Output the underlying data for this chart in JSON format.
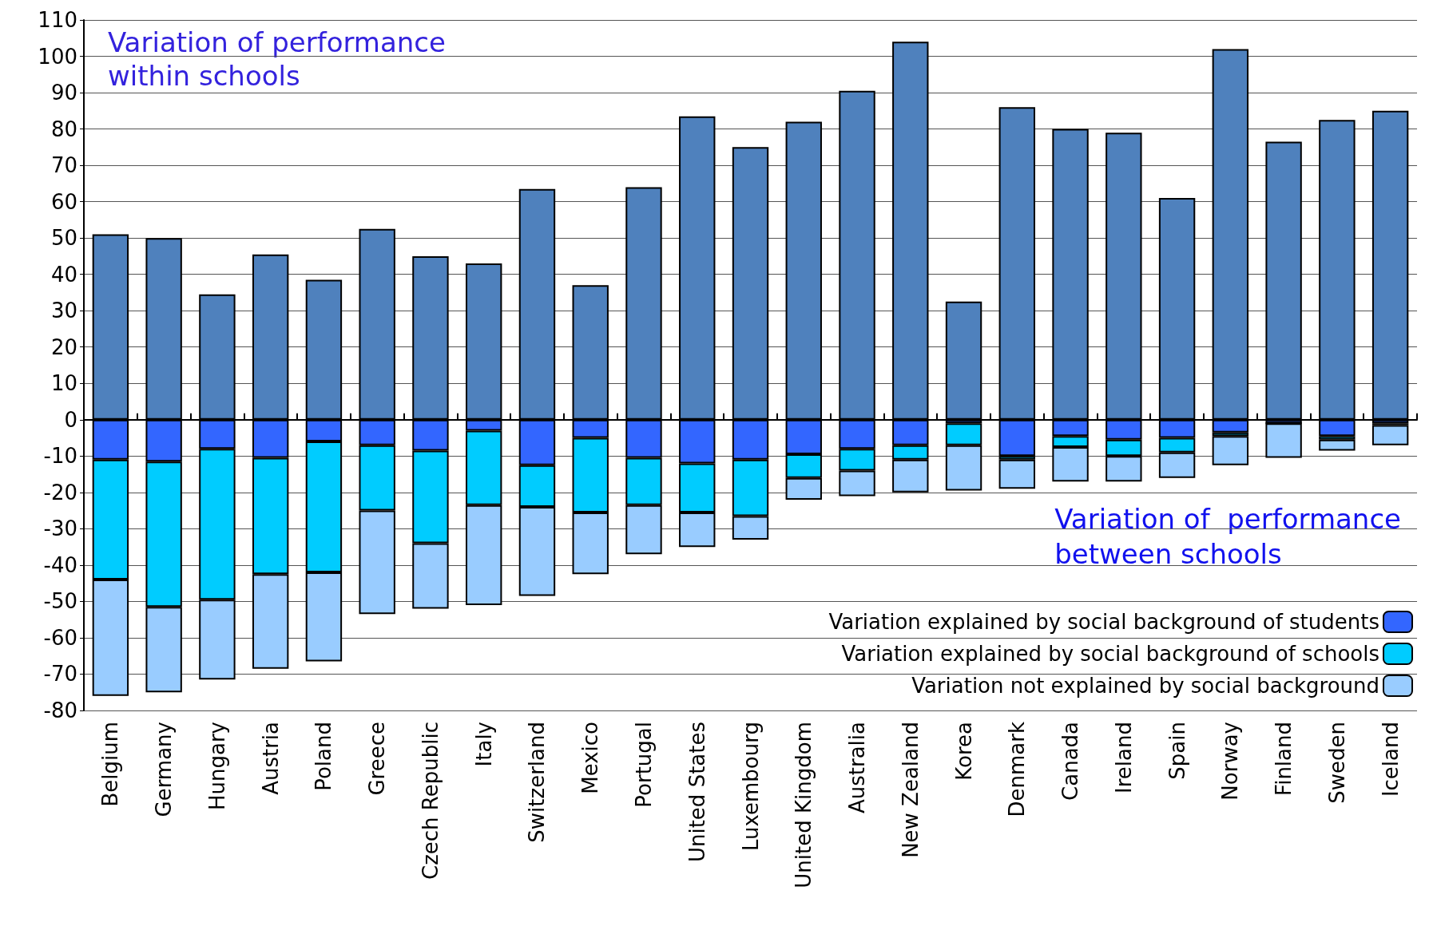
{
  "chart_data": {
    "type": "bar",
    "stacked": true,
    "categories": [
      "Belgium",
      "Germany",
      "Hungary",
      "Austria",
      "Poland",
      "Greece",
      "Czech Republic",
      "Italy",
      "Switzerland",
      "Mexico",
      "Portugal",
      "United States",
      "Luxembourg",
      "United Kingdom",
      "Australia",
      "New Zealand",
      "Korea",
      "Denmark",
      "Canada",
      "Ireland",
      "Spain",
      "Norway",
      "Finland",
      "Sweden",
      "Iceland"
    ],
    "series": [
      {
        "color": "#4f81bd",
        "values": [
          51,
          50,
          34.5,
          45.5,
          38.5,
          52.5,
          45,
          43,
          63.5,
          37,
          64,
          83.5,
          75,
          82,
          90.5,
          104,
          32.5,
          86,
          80,
          79,
          61,
          102,
          76.5,
          82.5,
          85
        ]
      },
      {
        "name": "Variation explained by social background of students",
        "color": "#3366ff",
        "values": [
          -11,
          -11.5,
          -8,
          -10.5,
          -6,
          -7,
          -8.5,
          -3,
          -12.5,
          -5,
          -10.5,
          -12,
          -11,
          -9.5,
          -8,
          -7,
          -1,
          -10,
          -4.5,
          -5.5,
          -5,
          -3.5,
          -1,
          -4.5,
          -1
        ]
      },
      {
        "name": "Variation explained by social background of schools",
        "color": "#00ccff",
        "values": [
          -33,
          -40,
          -41.5,
          -32,
          -36,
          -18,
          -25.5,
          -20.5,
          -11.5,
          -20.5,
          -13,
          -13.5,
          -15.5,
          -6.5,
          -6,
          -4,
          -6,
          -1,
          -3,
          -4.5,
          -4,
          -1,
          0,
          -1,
          -0.5
        ]
      },
      {
        "name": "Variation not explained by social background",
        "color": "#99ccff",
        "values": [
          -32,
          -23.5,
          -22,
          -26,
          -24.5,
          -28.5,
          -18,
          -27.5,
          -24.5,
          -17,
          -13.5,
          -9.5,
          -6.5,
          -6,
          -7,
          -9,
          -12.5,
          -8,
          -9.5,
          -7,
          -7,
          -8,
          -9.5,
          -3,
          -5.5
        ]
      }
    ],
    "ylim": [
      -80,
      110
    ],
    "yticks": [
      -80,
      -70,
      -60,
      -50,
      -40,
      -30,
      -20,
      -10,
      0,
      10,
      20,
      30,
      40,
      50,
      60,
      70,
      80,
      90,
      100,
      110
    ],
    "grid": "y",
    "legend": "bottom right",
    "annotations": [
      "Variation of performance within schools",
      "Variation of  performance between schools"
    ]
  }
}
